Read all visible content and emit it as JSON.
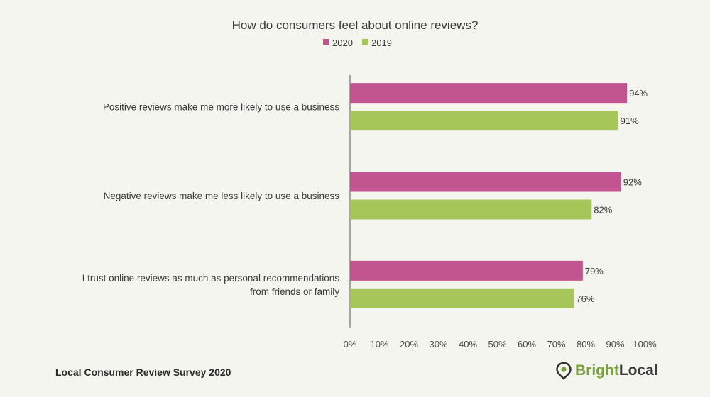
{
  "chart_data": {
    "type": "bar",
    "orientation": "horizontal",
    "title": "How do consumers feel about online reviews?",
    "categories": [
      [
        "Positive reviews make me more likely to use a business"
      ],
      [
        "Negative reviews make me less likely to use a business"
      ],
      [
        "I trust online reviews as much as personal recommendations",
        "from friends or family"
      ]
    ],
    "series": [
      {
        "name": "2020",
        "color": "#c2548f",
        "values": [
          94,
          92,
          79
        ],
        "labels": [
          "94%",
          "92%",
          "79%"
        ]
      },
      {
        "name": "2019",
        "color": "#a6c65a",
        "values": [
          91,
          82,
          76
        ],
        "labels": [
          "91%",
          "82%",
          "76%"
        ]
      }
    ],
    "xlim": [
      0,
      100
    ],
    "xticks": [
      "0%",
      "10%",
      "20%",
      "30%",
      "40%",
      "50%",
      "60%",
      "70%",
      "80%",
      "90%",
      "100%"
    ],
    "legend_position": "top-center",
    "grid": false
  },
  "footer": {
    "source": "Local Consumer Review Survey 2020",
    "brand": {
      "part1": "Bright",
      "part2": "Local"
    }
  }
}
